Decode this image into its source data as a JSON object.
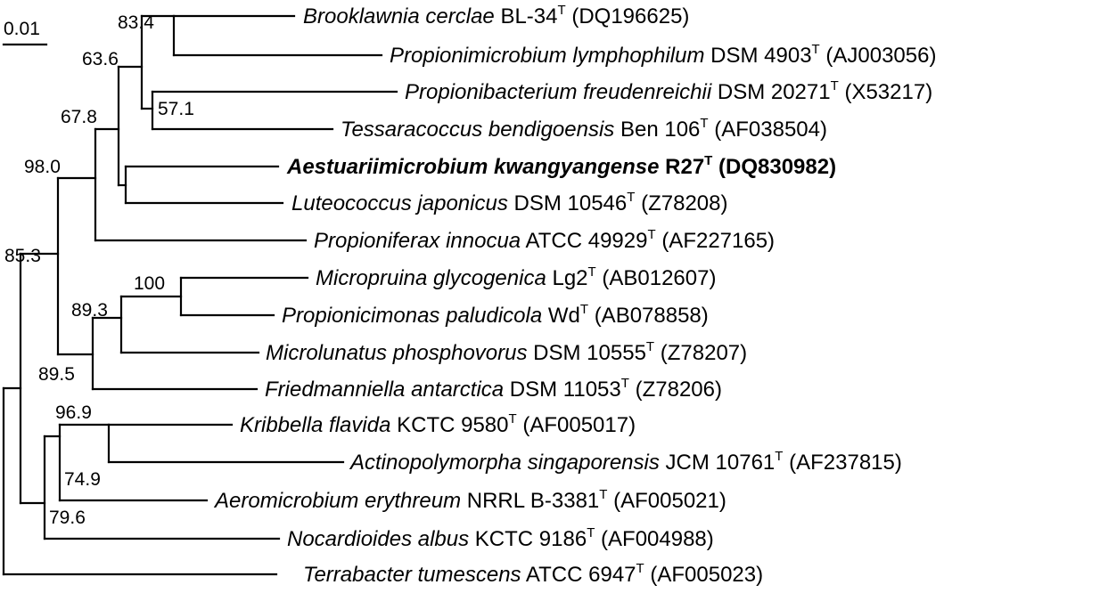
{
  "scale_bar": {
    "label": "0.01"
  },
  "taxa": [
    {
      "genus": "Brooklawnia cerclae",
      "strain": "BL-34",
      "type_mark": "T",
      "accession": "(DQ196625)",
      "bold": false
    },
    {
      "genus": "Propionimicrobium lymphophilum",
      "strain": "DSM 4903",
      "type_mark": "T",
      "accession": "(AJ003056)",
      "bold": false
    },
    {
      "genus": "Propionibacterium freudenreichii",
      "strain": "DSM 20271",
      "type_mark": "T",
      "accession": "(X53217)",
      "bold": false
    },
    {
      "genus": "Tessaracoccus bendigoensis",
      "strain": "Ben 106",
      "type_mark": "T",
      "accession": "(AF038504)",
      "bold": false
    },
    {
      "genus": "Aestuariimicrobium kwangyangense",
      "strain": "R27",
      "type_mark": "T",
      "accession": "(DQ830982)",
      "bold": true
    },
    {
      "genus": "Luteococcus japonicus",
      "strain": "DSM 10546",
      "type_mark": "T",
      "accession": "(Z78208)",
      "bold": false
    },
    {
      "genus": "Propioniferax innocua",
      "strain": "ATCC 49929",
      "type_mark": "T",
      "accession": "(AF227165)",
      "bold": false
    },
    {
      "genus": "Micropruina glycogenica",
      "strain": "Lg2",
      "type_mark": "T",
      "accession": "(AB012607)",
      "bold": false
    },
    {
      "genus": "Propionicimonas paludicola",
      "strain": "Wd",
      "type_mark": "T",
      "accession": "(AB078858)",
      "bold": false
    },
    {
      "genus": "Microlunatus phosphovorus",
      "strain": "DSM 10555",
      "type_mark": "T",
      "accession": "(Z78207)",
      "bold": false
    },
    {
      "genus": "Friedmanniella antarctica",
      "strain": "DSM 11053",
      "type_mark": "T",
      "accession": "(Z78206)",
      "bold": false
    },
    {
      "genus": "Kribbella flavida",
      "strain": "KCTC 9580",
      "type_mark": "T",
      "accession": "(AF005017)",
      "bold": false
    },
    {
      "genus": "Actinopolymorpha singaporensis",
      "strain": "JCM 10761",
      "type_mark": "T",
      "accession": "(AF237815)",
      "bold": false
    },
    {
      "genus": "Aeromicrobium erythreum",
      "strain": "NRRL B-3381",
      "type_mark": "T",
      "accession": "(AF005021)",
      "bold": false
    },
    {
      "genus": "Nocardioides albus",
      "strain": "KCTC 9186",
      "type_mark": "T",
      "accession": "(AF004988)",
      "bold": false
    },
    {
      "genus": "Terrabacter tumescens",
      "strain": "ATCC 6947",
      "type_mark": "T",
      "accession": "(AF005023)",
      "bold": false
    }
  ],
  "bootstrap": [
    "83.4",
    "63.6",
    "57.1",
    "67.8",
    "98.0",
    "85.3",
    "100",
    "89.3",
    "89.5",
    "96.9",
    "74.9",
    "79.6"
  ]
}
